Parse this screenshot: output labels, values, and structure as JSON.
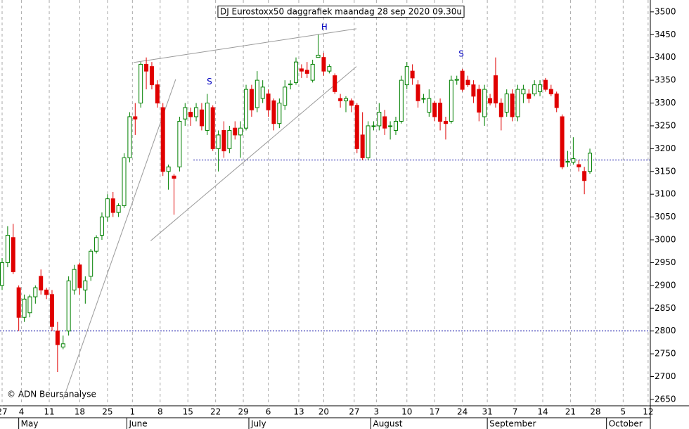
{
  "chart_data": {
    "type": "candlestick",
    "title": "DJ Eurostoxx50 daggrafiek maandag 28 sep 2020 09.30u",
    "copyright": "© ADN Beursanalyse",
    "up_color": "#008000",
    "down_color": "#e00000",
    "open": [
      2900,
      2950,
      3005,
      2895,
      2830,
      2840,
      2875,
      2920,
      2890,
      2880,
      2800,
      2765,
      2800,
      2890,
      2945,
      2890,
      2920,
      2975,
      3010,
      3050,
      3090,
      3060,
      3075,
      3180,
      3270,
      3300,
      3385,
      3380,
      3340,
      3290,
      3150,
      3140,
      3160,
      3265,
      3280,
      3270,
      3285,
      3240,
      3290,
      3200,
      3240,
      3200,
      3245,
      3230,
      3245,
      3330,
      3290,
      3310,
      3320,
      3305,
      3255,
      3295,
      3340,
      3345,
      3375,
      3372,
      3350,
      3400,
      3400,
      3370,
      3360,
      3310,
      3305,
      3305,
      3295,
      3230,
      3180,
      3250,
      3250,
      3270,
      3250,
      3240,
      3260,
      3340,
      3370,
      3340,
      3310,
      3280,
      3300,
      3300,
      3260,
      3260,
      3350,
      3370,
      3350,
      3340,
      3330,
      3270,
      3310,
      3360,
      3300,
      3280,
      3320,
      3270,
      3320,
      3320,
      3320,
      3325,
      3350,
      3330,
      3320,
      3270,
      3170,
      3170,
      3165,
      3150,
      3150
    ],
    "high": [
      2960,
      3030,
      3035,
      2900,
      2880,
      2880,
      2900,
      2935,
      2895,
      2890,
      2820,
      2790,
      2920,
      2945,
      2950,
      2920,
      2980,
      3010,
      3060,
      3100,
      3105,
      3080,
      3190,
      3280,
      3300,
      3390,
      3400,
      3390,
      3350,
      3300,
      3165,
      3145,
      3270,
      3300,
      3290,
      3300,
      3300,
      3320,
      3295,
      3240,
      3260,
      3250,
      3260,
      3260,
      3340,
      3340,
      3370,
      3350,
      3330,
      3310,
      3310,
      3350,
      3350,
      3400,
      3385,
      3390,
      3395,
      3450,
      3410,
      3385,
      3365,
      3320,
      3315,
      3310,
      3300,
      3280,
      3260,
      3260,
      3300,
      3285,
      3260,
      3270,
      3360,
      3390,
      3385,
      3350,
      3320,
      3330,
      3305,
      3310,
      3270,
      3360,
      3360,
      3375,
      3360,
      3350,
      3340,
      3340,
      3320,
      3400,
      3310,
      3330,
      3330,
      3340,
      3340,
      3330,
      3350,
      3350,
      3355,
      3340,
      3325,
      3275,
      3195,
      3225,
      3175,
      3160,
      3200
    ],
    "low": [
      2890,
      2940,
      2925,
      2800,
      2820,
      2830,
      2860,
      2880,
      2870,
      2800,
      2710,
      2760,
      2790,
      2880,
      2880,
      2860,
      2910,
      2970,
      3000,
      3040,
      3050,
      3050,
      3070,
      3170,
      3230,
      3290,
      3330,
      3330,
      3290,
      3140,
      3110,
      3055,
      3150,
      3250,
      3250,
      3260,
      3240,
      3230,
      3195,
      3150,
      3180,
      3190,
      3220,
      3180,
      3240,
      3270,
      3280,
      3300,
      3270,
      3240,
      3245,
      3285,
      3330,
      3340,
      3355,
      3355,
      3345,
      3400,
      3360,
      3365,
      3320,
      3290,
      3280,
      3280,
      3190,
      3175,
      3175,
      3240,
      3240,
      3230,
      3220,
      3230,
      3255,
      3330,
      3340,
      3290,
      3300,
      3270,
      3260,
      3240,
      3220,
      3255,
      3340,
      3325,
      3335,
      3300,
      3260,
      3250,
      3295,
      3290,
      3240,
      3270,
      3260,
      3260,
      3300,
      3300,
      3315,
      3315,
      3325,
      3315,
      3280,
      3155,
      3160,
      3165,
      3150,
      3100,
      3145
    ],
    "close": [
      2950,
      3010,
      2930,
      2830,
      2870,
      2875,
      2895,
      2890,
      2880,
      2810,
      2770,
      2772,
      2910,
      2935,
      2895,
      2910,
      2975,
      3005,
      3050,
      3090,
      3060,
      3075,
      3180,
      3270,
      3265,
      3385,
      3370,
      3340,
      3300,
      3150,
      3160,
      3135,
      3260,
      3290,
      3270,
      3290,
      3250,
      3300,
      3200,
      3230,
      3195,
      3240,
      3230,
      3245,
      3330,
      3285,
      3350,
      3335,
      3285,
      3255,
      3300,
      3335,
      3342,
      3390,
      3370,
      3365,
      3385,
      3405,
      3370,
      3380,
      3325,
      3305,
      3310,
      3295,
      3200,
      3180,
      3250,
      3250,
      3280,
      3245,
      3250,
      3260,
      3350,
      3380,
      3355,
      3305,
      3310,
      3310,
      3270,
      3260,
      3255,
      3350,
      3352,
      3330,
      3340,
      3315,
      3280,
      3330,
      3300,
      3300,
      3270,
      3320,
      3270,
      3330,
      3330,
      3310,
      3340,
      3340,
      3330,
      3320,
      3290,
      3160,
      3172,
      3178,
      3160,
      3130,
      3190
    ],
    "xlim": [
      -0.38,
      116.9
    ],
    "ylim": [
      2636,
      3526
    ],
    "yticks": [
      2650,
      2700,
      2750,
      2800,
      2850,
      2900,
      2950,
      3000,
      3050,
      3100,
      3150,
      3200,
      3250,
      3300,
      3350,
      3400,
      3450,
      3500
    ],
    "xticks": [
      {
        "value": 0,
        "label": "27"
      },
      {
        "value": 3.5,
        "label": "4"
      },
      {
        "value": 8.5,
        "label": "11"
      },
      {
        "value": 14,
        "label": "18"
      },
      {
        "value": 19,
        "label": "25"
      },
      {
        "value": 23.5,
        "label": "1"
      },
      {
        "value": 28.5,
        "label": "8"
      },
      {
        "value": 33.5,
        "label": "15"
      },
      {
        "value": 38.5,
        "label": "22"
      },
      {
        "value": 43.5,
        "label": "29"
      },
      {
        "value": 48,
        "label": "6"
      },
      {
        "value": 53.5,
        "label": "13"
      },
      {
        "value": 58,
        "label": "20"
      },
      {
        "value": 63.5,
        "label": "27"
      },
      {
        "value": 67.5,
        "label": "3"
      },
      {
        "value": 73,
        "label": "10"
      },
      {
        "value": 78,
        "label": "17"
      },
      {
        "value": 83,
        "label": "24"
      },
      {
        "value": 87.5,
        "label": "31"
      },
      {
        "value": 92.5,
        "label": "7"
      },
      {
        "value": 97.5,
        "label": "14"
      },
      {
        "value": 102.5,
        "label": "21"
      },
      {
        "value": 107,
        "label": "28"
      },
      {
        "value": 112,
        "label": "5"
      },
      {
        "value": 116.5,
        "label": "12"
      }
    ],
    "month_ticks": [
      {
        "value": 3,
        "label": "May"
      },
      {
        "value": 22.5,
        "label": "June"
      },
      {
        "value": 44.5,
        "label": "July"
      },
      {
        "value": 66.5,
        "label": "August"
      },
      {
        "value": 87.5,
        "label": "September"
      },
      {
        "value": 109,
        "label": "October"
      }
    ],
    "hlines": [
      {
        "value": 3175,
        "from": 34.5
      },
      {
        "value": 2800
      }
    ],
    "trendlines": [
      {
        "x": [
          23.7,
          63.9
        ],
        "y": [
          3389,
          3463
        ]
      },
      {
        "x": [
          26.8,
          63.9
        ],
        "y": [
          2998,
          3380
        ]
      },
      {
        "x": [
          11,
          31.3
        ],
        "y": [
          2650,
          3352
        ]
      }
    ],
    "annotations": [
      {
        "text": "S",
        "x": 37.4,
        "y": 3346
      },
      {
        "text": "H",
        "x": 58.1,
        "y": 3466
      },
      {
        "text": "S",
        "x": 82.8,
        "y": 3407
      }
    ]
  }
}
